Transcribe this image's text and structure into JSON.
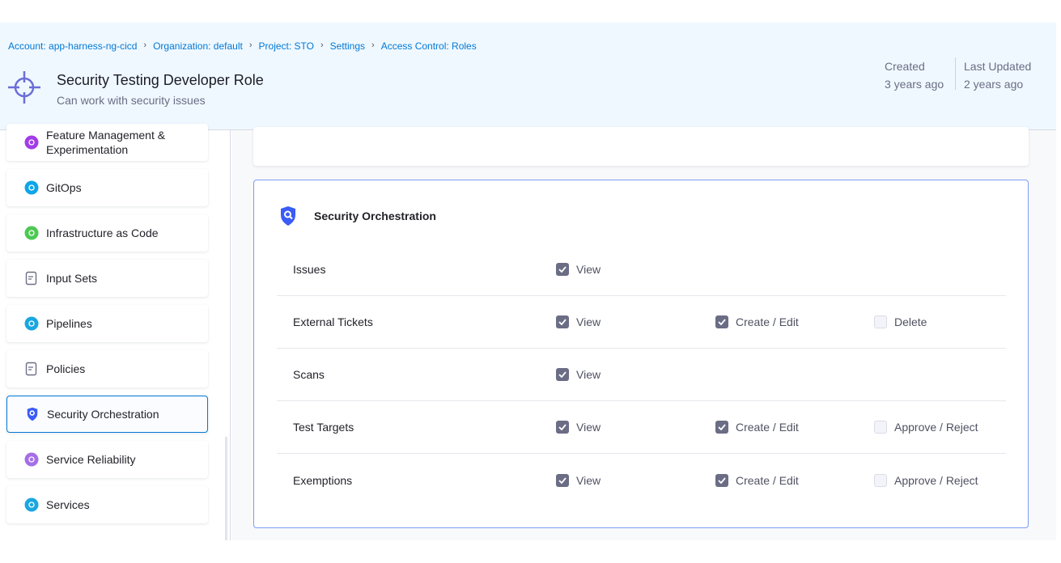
{
  "breadcrumbs": [
    "Account: app-harness-ng-cicd",
    "Organization: default",
    "Project: STO",
    "Settings",
    "Access Control: Roles"
  ],
  "header": {
    "title": "Security Testing Developer Role",
    "subtitle": "Can work with security issues",
    "created_label": "Created",
    "created_value": "3 years ago",
    "updated_label": "Last Updated",
    "updated_value": "2 years ago",
    "icon": "crosshair-icon"
  },
  "sidebar": {
    "items": [
      {
        "label": "Feature Management & Experimentation",
        "icon": "feature-flag-icon",
        "color": "#a23ce8"
      },
      {
        "label": "GitOps",
        "icon": "gitops-icon",
        "color": "#0ea5e9"
      },
      {
        "label": "Infrastructure as Code",
        "icon": "iac-icon",
        "color": "#4dc952"
      },
      {
        "label": "Input Sets",
        "icon": "input-sets-icon",
        "color": "#6b6d85"
      },
      {
        "label": "Pipelines",
        "icon": "pipelines-icon",
        "color": "#1ba6e0"
      },
      {
        "label": "Policies",
        "icon": "policies-icon",
        "color": "#6b6d85"
      },
      {
        "label": "Security Orchestration",
        "icon": "shield-search-icon",
        "color": "#3b5cf6",
        "active": true
      },
      {
        "label": "Service Reliability",
        "icon": "service-reliability-icon",
        "color": "#a56ee8"
      },
      {
        "label": "Services",
        "icon": "services-icon",
        "color": "#1ba6e0"
      }
    ]
  },
  "card": {
    "title": "Security Orchestration",
    "rows": [
      {
        "label": "Issues",
        "perms": [
          {
            "label": "View",
            "checked": true
          }
        ]
      },
      {
        "label": "External Tickets",
        "perms": [
          {
            "label": "View",
            "checked": true
          },
          {
            "label": "Create / Edit",
            "checked": true
          },
          {
            "label": "Delete",
            "checked": false
          }
        ]
      },
      {
        "label": "Scans",
        "perms": [
          {
            "label": "View",
            "checked": true
          }
        ]
      },
      {
        "label": "Test Targets",
        "perms": [
          {
            "label": "View",
            "checked": true
          },
          {
            "label": "Create / Edit",
            "checked": true
          },
          {
            "label": "Approve / Reject",
            "checked": false
          }
        ]
      },
      {
        "label": "Exemptions",
        "perms": [
          {
            "label": "View",
            "checked": true
          },
          {
            "label": "Create / Edit",
            "checked": true
          },
          {
            "label": "Approve / Reject",
            "checked": false
          }
        ]
      }
    ]
  }
}
